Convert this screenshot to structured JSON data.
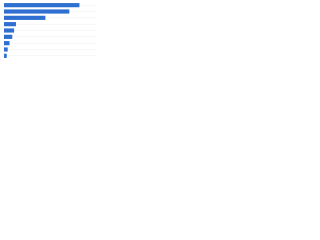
{
  "chart_data": {
    "type": "bar",
    "orientation": "horizontal",
    "categories": [
      null,
      null,
      null,
      null,
      null,
      null,
      null,
      null,
      null
    ],
    "values": [
      82,
      71,
      45,
      13,
      11,
      9,
      6,
      4,
      3
    ],
    "color": "#2f6fd1",
    "xlim": [
      0,
      100
    ],
    "grid": true
  }
}
